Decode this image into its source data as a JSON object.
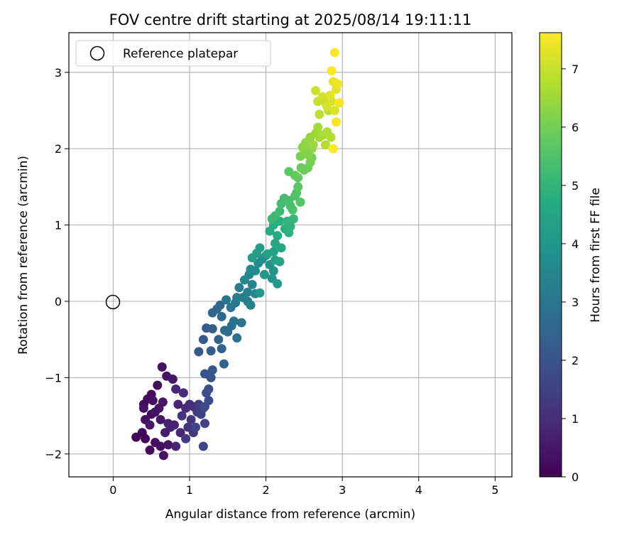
{
  "chart_data": {
    "type": "scatter",
    "title": "FOV centre drift starting at 2025/08/14 19:11:11",
    "xlabel": "Angular distance from reference (arcmin)",
    "ylabel": "Rotation from reference (arcmin)",
    "xlim": [
      -0.58,
      5.22
    ],
    "ylim": [
      -2.3,
      3.52
    ],
    "xticks": [
      0,
      1,
      2,
      3,
      4,
      5
    ],
    "yticks": [
      -2,
      -1,
      0,
      1,
      2,
      3
    ],
    "xtick_labels": [
      "0",
      "1",
      "2",
      "3",
      "4",
      "5"
    ],
    "ytick_labels": [
      "−2",
      "−1",
      "0",
      "1",
      "2",
      "3"
    ],
    "grid": true,
    "legend": {
      "position": "top-left",
      "label": "Reference platepar"
    },
    "reference_point": {
      "x": 0,
      "y": 0,
      "marker": "open-circle"
    },
    "colorbar": {
      "label": "Hours from first FF file",
      "range": [
        0,
        7.62
      ],
      "ticks": [
        0,
        1,
        2,
        3,
        4,
        5,
        6,
        7
      ],
      "tick_labels": [
        "0",
        "1",
        "2",
        "3",
        "4",
        "5",
        "6",
        "7"
      ],
      "colormap": "viridis"
    },
    "series": [
      {
        "points": [
          [
            0.3,
            -1.78,
            0.1
          ],
          [
            0.38,
            -1.72,
            0.15
          ],
          [
            0.42,
            -1.8,
            0.2
          ],
          [
            0.48,
            -1.95,
            0.25
          ],
          [
            0.55,
            -1.85,
            0.3
          ],
          [
            0.62,
            -1.9,
            0.35
          ],
          [
            0.66,
            -2.02,
            0.4
          ],
          [
            0.72,
            -1.88,
            0.45
          ],
          [
            0.4,
            -1.35,
            0.15
          ],
          [
            0.45,
            -1.28,
            0.2
          ],
          [
            0.5,
            -1.22,
            0.25
          ],
          [
            0.58,
            -1.1,
            0.3
          ],
          [
            0.64,
            -0.86,
            0.35
          ],
          [
            0.7,
            -0.98,
            0.4
          ],
          [
            0.78,
            -1.02,
            0.45
          ],
          [
            0.42,
            -1.55,
            0.28
          ],
          [
            0.5,
            -1.48,
            0.32
          ],
          [
            0.55,
            -1.45,
            0.38
          ],
          [
            0.6,
            -1.4,
            0.42
          ],
          [
            0.65,
            -1.32,
            0.48
          ],
          [
            0.4,
            -1.4,
            0.35
          ],
          [
            0.52,
            -1.3,
            0.4
          ],
          [
            0.62,
            -1.55,
            0.5
          ],
          [
            0.48,
            -1.62,
            0.55
          ],
          [
            0.68,
            -1.72,
            0.6
          ],
          [
            0.75,
            -1.65,
            0.65
          ],
          [
            0.72,
            -1.6,
            0.7
          ],
          [
            0.8,
            -1.62,
            0.75
          ],
          [
            0.82,
            -1.9,
            0.78
          ],
          [
            0.88,
            -1.72,
            0.82
          ],
          [
            0.85,
            -1.35,
            0.8
          ],
          [
            0.82,
            -1.15,
            0.85
          ],
          [
            0.92,
            -1.2,
            0.9
          ],
          [
            0.95,
            -1.4,
            0.95
          ],
          [
            1.0,
            -1.35,
            1.0
          ],
          [
            1.05,
            -1.38,
            1.05
          ],
          [
            0.9,
            -1.5,
            1.1
          ],
          [
            1.02,
            -1.55,
            1.15
          ],
          [
            0.98,
            -1.65,
            1.2
          ],
          [
            1.05,
            -1.72,
            1.25
          ],
          [
            0.95,
            -1.8,
            1.3
          ],
          [
            1.1,
            -1.45,
            1.35
          ],
          [
            1.12,
            -1.35,
            1.4
          ],
          [
            1.18,
            -1.4,
            1.45
          ],
          [
            1.15,
            -1.48,
            1.5
          ],
          [
            1.2,
            -1.6,
            1.55
          ],
          [
            1.18,
            -1.9,
            1.6
          ],
          [
            1.08,
            -1.65,
            1.65
          ],
          [
            1.2,
            -1.38,
            1.7
          ],
          [
            1.25,
            -1.3,
            1.75
          ],
          [
            1.22,
            -1.2,
            1.8
          ],
          [
            1.25,
            -1.15,
            1.85
          ],
          [
            1.28,
            -1.0,
            1.9
          ],
          [
            1.2,
            -0.95,
            1.95
          ],
          [
            1.25,
            -0.96,
            2.0
          ],
          [
            1.3,
            -0.9,
            2.05
          ],
          [
            1.12,
            -0.66,
            2.1
          ],
          [
            1.18,
            -0.5,
            2.15
          ],
          [
            1.22,
            -0.35,
            2.2
          ],
          [
            1.3,
            -0.36,
            2.25
          ],
          [
            1.28,
            -0.65,
            2.3
          ],
          [
            1.38,
            -0.5,
            2.35
          ],
          [
            1.42,
            -0.62,
            2.4
          ],
          [
            1.45,
            -0.82,
            2.45
          ],
          [
            1.3,
            -0.15,
            2.5
          ],
          [
            1.36,
            -0.1,
            2.55
          ],
          [
            1.4,
            -0.05,
            2.6
          ],
          [
            1.42,
            -0.2,
            2.65
          ],
          [
            1.46,
            -0.38,
            2.7
          ],
          [
            1.5,
            -0.4,
            2.75
          ],
          [
            1.55,
            -0.32,
            2.8
          ],
          [
            1.58,
            -0.26,
            2.85
          ],
          [
            1.62,
            -0.48,
            2.9
          ],
          [
            1.68,
            -0.28,
            2.95
          ],
          [
            1.48,
            0.02,
            3.0
          ],
          [
            1.54,
            -0.08,
            3.05
          ],
          [
            1.6,
            -0.02,
            3.1
          ],
          [
            1.62,
            0.05,
            3.15
          ],
          [
            1.65,
            0.18,
            3.2
          ],
          [
            1.7,
            0.05,
            3.25
          ],
          [
            1.76,
            0.0,
            3.3
          ],
          [
            1.8,
            -0.05,
            3.35
          ],
          [
            1.76,
            0.12,
            3.4
          ],
          [
            1.82,
            0.22,
            3.45
          ],
          [
            1.86,
            0.1,
            3.5
          ],
          [
            1.72,
            0.28,
            3.55
          ],
          [
            1.78,
            0.35,
            3.6
          ],
          [
            1.8,
            0.42,
            3.65
          ],
          [
            1.86,
            0.4,
            3.7
          ],
          [
            1.9,
            0.5,
            3.75
          ],
          [
            1.95,
            0.55,
            3.8
          ],
          [
            2.0,
            0.6,
            3.85
          ],
          [
            2.05,
            0.48,
            3.9
          ],
          [
            2.1,
            0.4,
            3.95
          ],
          [
            2.08,
            0.3,
            4.0
          ],
          [
            1.98,
            0.35,
            4.05
          ],
          [
            1.92,
            0.11,
            4.1
          ],
          [
            2.15,
            0.23,
            4.15
          ],
          [
            1.82,
            0.57,
            4.2
          ],
          [
            1.88,
            0.63,
            4.25
          ],
          [
            1.92,
            0.7,
            4.3
          ],
          [
            2.02,
            0.62,
            4.35
          ],
          [
            2.1,
            0.65,
            4.4
          ],
          [
            2.12,
            0.54,
            4.45
          ],
          [
            2.18,
            0.52,
            4.5
          ],
          [
            2.2,
            0.7,
            4.55
          ],
          [
            2.12,
            0.76,
            4.6
          ],
          [
            2.15,
            0.86,
            4.65
          ],
          [
            2.05,
            0.92,
            4.7
          ],
          [
            2.1,
            1.0,
            4.75
          ],
          [
            2.18,
            1.05,
            4.8
          ],
          [
            2.25,
            0.95,
            4.85
          ],
          [
            2.3,
            0.9,
            4.9
          ],
          [
            2.32,
            0.98,
            4.95
          ],
          [
            2.28,
            1.05,
            5.0
          ],
          [
            2.36,
            1.08,
            5.05
          ],
          [
            2.08,
            1.08,
            5.1
          ],
          [
            2.12,
            1.12,
            5.15
          ],
          [
            2.18,
            1.18,
            5.2
          ],
          [
            2.2,
            1.28,
            5.25
          ],
          [
            2.24,
            1.35,
            5.3
          ],
          [
            2.3,
            1.32,
            5.35
          ],
          [
            2.32,
            1.25,
            5.4
          ],
          [
            2.35,
            1.2,
            5.45
          ],
          [
            2.38,
            1.38,
            5.5
          ],
          [
            2.4,
            1.42,
            5.55
          ],
          [
            2.45,
            1.3,
            5.6
          ],
          [
            2.42,
            1.5,
            5.65
          ],
          [
            2.3,
            1.7,
            5.7
          ],
          [
            2.38,
            1.65,
            5.75
          ],
          [
            2.42,
            1.62,
            5.8
          ],
          [
            2.46,
            1.75,
            5.85
          ],
          [
            2.5,
            1.72,
            5.9
          ],
          [
            2.55,
            1.75,
            5.95
          ],
          [
            2.58,
            1.82,
            6.0
          ],
          [
            2.6,
            1.88,
            6.05
          ],
          [
            2.45,
            1.9,
            6.1
          ],
          [
            2.5,
            1.96,
            6.15
          ],
          [
            2.55,
            1.92,
            6.2
          ],
          [
            2.6,
            2.0,
            6.25
          ],
          [
            2.48,
            2.02,
            6.3
          ],
          [
            2.52,
            2.08,
            6.35
          ],
          [
            2.58,
            2.15,
            6.4
          ],
          [
            2.62,
            2.05,
            6.45
          ],
          [
            2.65,
            2.2,
            6.5
          ],
          [
            2.7,
            2.15,
            6.55
          ],
          [
            2.68,
            2.28,
            6.6
          ],
          [
            2.75,
            2.18,
            6.65
          ],
          [
            2.8,
            2.22,
            6.7
          ],
          [
            2.85,
            2.15,
            6.75
          ],
          [
            2.78,
            2.05,
            6.8
          ],
          [
            2.82,
            2.5,
            6.85
          ],
          [
            2.7,
            2.45,
            6.9
          ],
          [
            2.78,
            2.6,
            6.95
          ],
          [
            2.68,
            2.62,
            7.0
          ],
          [
            2.65,
            2.76,
            7.05
          ],
          [
            2.74,
            2.68,
            7.1
          ],
          [
            2.8,
            2.55,
            7.15
          ],
          [
            2.86,
            2.62,
            7.2
          ],
          [
            2.9,
            2.5,
            7.25
          ],
          [
            2.84,
            2.7,
            7.3
          ],
          [
            2.92,
            2.78,
            7.35
          ],
          [
            2.88,
            2.88,
            7.4
          ],
          [
            2.94,
            2.85,
            7.45
          ],
          [
            2.96,
            2.6,
            7.5
          ],
          [
            2.92,
            2.35,
            7.55
          ],
          [
            2.88,
            2.0,
            7.58
          ],
          [
            2.9,
            3.26,
            7.6
          ],
          [
            2.86,
            3.02,
            7.62
          ]
        ]
      }
    ]
  }
}
